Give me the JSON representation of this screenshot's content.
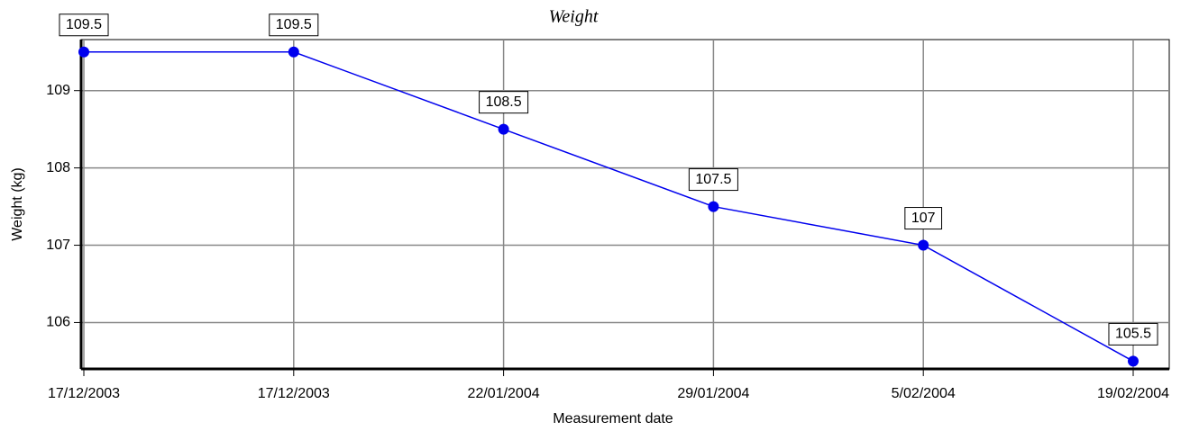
{
  "chart_data": {
    "type": "line",
    "title": "Weight",
    "x_label": "Measurement date",
    "y_label": "Weight (kg)",
    "categories": [
      "17/12/2003",
      "17/12/2003",
      "22/01/2004",
      "29/01/2004",
      "5/02/2004",
      "19/02/2004"
    ],
    "series": [
      {
        "name": "Weight",
        "color": "#0000ee",
        "values": [
          109.5,
          109.5,
          108.5,
          107.5,
          107,
          105.5
        ]
      }
    ],
    "ylim": [
      105.4,
      109.66
    ],
    "yticks": [
      106,
      107,
      108,
      109
    ],
    "grid": true
  }
}
